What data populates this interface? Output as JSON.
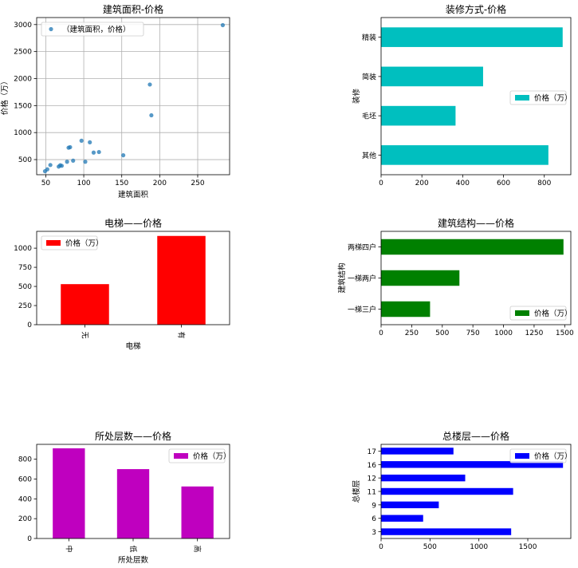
{
  "chart_data": [
    {
      "type": "scatter",
      "title": "建筑面积-价格",
      "xlabel": "建筑面积",
      "ylabel": "价格（万）",
      "xlim": [
        38,
        292
      ],
      "ylim": [
        220,
        3130
      ],
      "xticks": [
        50,
        100,
        150,
        200,
        250
      ],
      "yticks": [
        500,
        1000,
        1500,
        2000,
        2500,
        3000
      ],
      "grid": true,
      "legend": "top-left",
      "color": "#1f77b4",
      "series": [
        {
          "name": "（建筑面积，价格）",
          "points": [
            [
              49,
              285
            ],
            [
              52,
              320
            ],
            [
              56,
              400
            ],
            [
              67,
              370
            ],
            [
              69,
              395
            ],
            [
              71,
              385
            ],
            [
              78,
              460
            ],
            [
              80,
              720
            ],
            [
              82,
              730
            ],
            [
              86,
              480
            ],
            [
              97,
              850
            ],
            [
              102,
              460
            ],
            [
              108,
              820
            ],
            [
              113,
              630
            ],
            [
              120,
              640
            ],
            [
              152,
              580
            ],
            [
              187,
              1890
            ],
            [
              189,
              1320
            ],
            [
              283,
              2990
            ]
          ]
        }
      ]
    },
    {
      "type": "bar",
      "orientation": "horizontal",
      "title": "装修方式-价格",
      "ylabel": "装修",
      "xlabel": "",
      "categories": [
        "其他",
        "毛坯",
        "简装",
        "精装"
      ],
      "xlim": [
        0,
        930
      ],
      "xticks": [
        0,
        200,
        400,
        600,
        800
      ],
      "grid": false,
      "legend": "center-right",
      "color": "#00bfbf",
      "series": [
        {
          "name": "价格（万）",
          "values": [
            820,
            365,
            500,
            890
          ]
        }
      ]
    },
    {
      "type": "bar",
      "orientation": "vertical",
      "title": "电梯——价格",
      "xlabel": "电梯",
      "ylabel": "",
      "categories": [
        "无",
        "有"
      ],
      "ylim": [
        0,
        1220
      ],
      "yticks": [
        0,
        250,
        500,
        750,
        1000
      ],
      "grid": false,
      "legend": "top-left",
      "color": "#ff0000",
      "series": [
        {
          "name": "价格（万）",
          "values": [
            530,
            1160
          ]
        }
      ]
    },
    {
      "type": "bar",
      "orientation": "horizontal",
      "title": "建筑结构——价格",
      "ylabel": "建筑结构",
      "xlabel": "",
      "categories": [
        "一梯三户",
        "一梯两户",
        "两梯四户"
      ],
      "xlim": [
        0,
        1550
      ],
      "xticks": [
        0,
        250,
        500,
        750,
        1000,
        1250,
        1500
      ],
      "grid": false,
      "legend": "bottom-right",
      "color": "#008000",
      "series": [
        {
          "name": "价格（万）",
          "values": [
            400,
            640,
            1490
          ]
        }
      ]
    },
    {
      "type": "bar",
      "orientation": "vertical",
      "title": "所处层数——价格",
      "xlabel": "所处层数",
      "ylabel": "",
      "categories": [
        "中",
        "低",
        "高"
      ],
      "ylim": [
        0,
        950
      ],
      "yticks": [
        0,
        200,
        400,
        600,
        800
      ],
      "grid": false,
      "legend": "top-right",
      "color": "#bf00bf",
      "series": [
        {
          "name": "价格（万）",
          "values": [
            910,
            700,
            525
          ]
        }
      ]
    },
    {
      "type": "bar",
      "orientation": "horizontal",
      "title": "总楼层——价格",
      "ylabel": "总楼层",
      "xlabel": "",
      "categories": [
        "3",
        "6",
        "9",
        "11",
        "12",
        "16",
        "17"
      ],
      "xlim": [
        0,
        1940
      ],
      "xticks": [
        0,
        500,
        1000,
        1500
      ],
      "grid": false,
      "legend": "top-right",
      "color": "#0000ff",
      "series": [
        {
          "name": "价格（万）",
          "values": [
            1330,
            430,
            590,
            1350,
            860,
            1860,
            740
          ]
        }
      ]
    }
  ]
}
